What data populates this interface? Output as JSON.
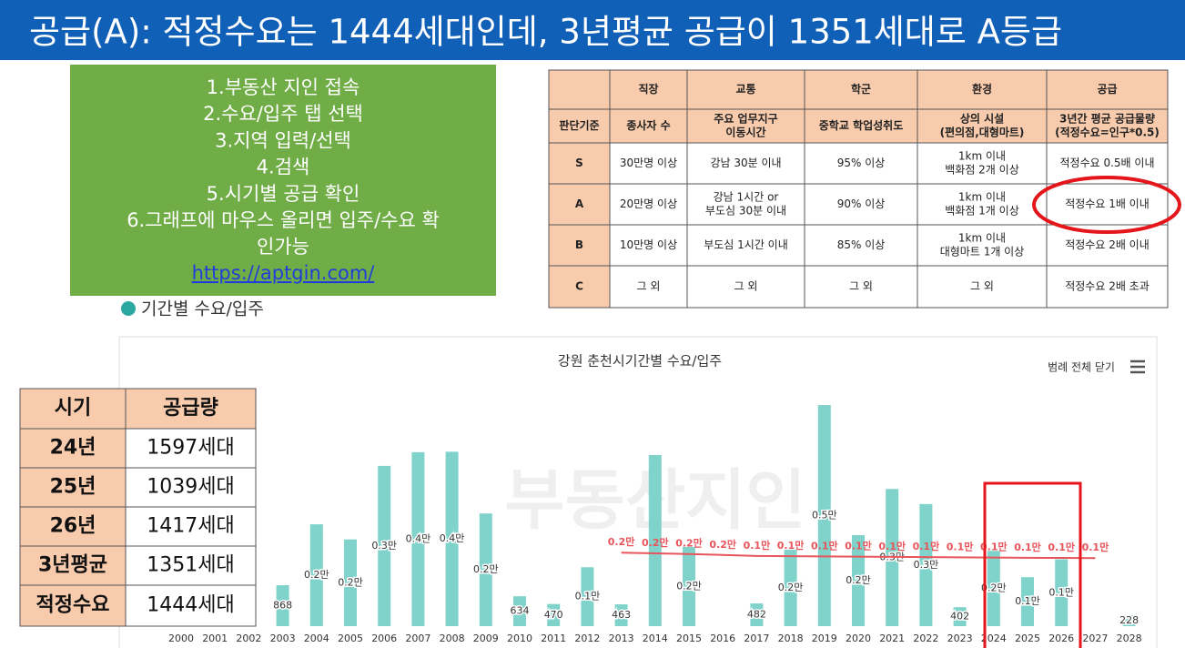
{
  "header": {
    "title": "공급(A): 적정수요는 1444세대인데, 3년평균 공급이 1351세대로 A등급"
  },
  "steps": {
    "lines": [
      "1.부동산 지인 접속",
      "2.수요/입주 탭 선택",
      "3.지역 입력/선택",
      "4.검색",
      "5.시기별 공급 확인",
      "6.그래프에 마우스 올리면 입주/수요 확",
      "인가능"
    ],
    "link": "https://aptgin.com/"
  },
  "section_label": "기간별 수요/입주",
  "criteria_table": {
    "header": [
      "직장",
      "교통",
      "학군",
      "환경",
      "공급"
    ],
    "rows": [
      {
        "grade": "판단기준",
        "cells": [
          [
            "종사자 수"
          ],
          [
            "주요 업무지구",
            "이동시간"
          ],
          [
            "중학교 학업성취도"
          ],
          [
            "상의 시설",
            "(편의점,대형마트)"
          ],
          [
            "3년간 평균 공급물량",
            "(적정수요=인구*0.5)"
          ]
        ]
      },
      {
        "grade": "S",
        "cells": [
          [
            "30만명 이상"
          ],
          [
            "강남 30분 이내"
          ],
          [
            "95% 이상"
          ],
          [
            "1km 이내",
            "백화점 2개 이상"
          ],
          [
            "적정수요 0.5배 이내"
          ]
        ]
      },
      {
        "grade": "A",
        "cells": [
          [
            "20만명 이상"
          ],
          [
            "강남 1시간 or",
            "부도심 30분 이내"
          ],
          [
            "90% 이상"
          ],
          [
            "1km 이내",
            "백화점 1개 이상"
          ],
          [
            "적정수요 1배 이내"
          ]
        ]
      },
      {
        "grade": "B",
        "cells": [
          [
            "10만명 이상"
          ],
          [
            "부도심 1시간 이내"
          ],
          [
            "85% 이상"
          ],
          [
            "1km 이내",
            "대형마트 1개 이상"
          ],
          [
            "적정수요 2배 이내"
          ]
        ]
      },
      {
        "grade": "C",
        "cells": [
          [
            "그 외"
          ],
          [
            "그 외"
          ],
          [
            "그 외"
          ],
          [
            "그 외"
          ],
          [
            "적정수요 2배 초과"
          ]
        ]
      }
    ]
  },
  "supply_table": {
    "header": [
      "시기",
      "공급량"
    ],
    "rows": [
      [
        "24년",
        "1597세대"
      ],
      [
        "25년",
        "1039세대"
      ],
      [
        "26년",
        "1417세대"
      ],
      [
        "3년평균",
        "1351세대"
      ],
      [
        "적정수요",
        "1444세대"
      ]
    ]
  },
  "chart_data": {
    "type": "bar",
    "title": "강원 춘천시기간별 수요/입주",
    "legend_button": "범례 전체 닫기",
    "watermark": "부동산지인",
    "categories": [
      "2000",
      "2001",
      "2002",
      "2003",
      "2004",
      "2005",
      "2006",
      "2007",
      "2008",
      "2009",
      "2010",
      "2011",
      "2012",
      "2013",
      "2014",
      "2015",
      "2016",
      "2017",
      "2018",
      "2019",
      "2020",
      "2021",
      "2022",
      "2023",
      "2024",
      "2025",
      "2026",
      "2027",
      "2028"
    ],
    "ylim": [
      0,
      5000
    ],
    "series": [
      {
        "type": "bar",
        "color": "#7fd3cb",
        "values": [
          null,
          null,
          null,
          868,
          2160,
          1840,
          3400,
          3690,
          3700,
          2390,
          634,
          470,
          1250,
          463,
          3630,
          1680,
          null,
          482,
          1620,
          4690,
          1930,
          2910,
          2590,
          402,
          1597,
          1039,
          1417,
          null,
          228
        ],
        "value_labels": [
          null,
          null,
          null,
          "868",
          "0.2만",
          "0.2만",
          "0.3만",
          "0.4만",
          "0.4만",
          "0.2만",
          "634",
          "470",
          "0.1만",
          "463",
          null,
          "0.2만",
          null,
          "482",
          "0.2만",
          "0.5만",
          "0.2만",
          "0.3만",
          "0.3만",
          "402",
          "0.2만",
          "0.1만",
          "0.1만",
          null,
          "228"
        ]
      },
      {
        "type": "line",
        "color": "#e8545a",
        "values": [
          null,
          null,
          null,
          null,
          null,
          null,
          null,
          null,
          null,
          null,
          null,
          null,
          null,
          1560,
          1545,
          1530,
          1510,
          1490,
          1485,
          1480,
          1475,
          1470,
          1465,
          1460,
          1455,
          1450,
          1447,
          1444,
          null
        ],
        "value_labels": [
          null,
          null,
          null,
          null,
          null,
          null,
          null,
          null,
          null,
          null,
          null,
          null,
          null,
          "0.2만",
          "0.2만",
          "0.2만",
          "0.2만",
          "0.1만",
          "0.1만",
          "0.1만",
          "0.1만",
          "0.1만",
          "0.1만",
          "0.1만",
          "0.1만",
          "0.1만",
          "0.1만",
          "0.1만",
          null
        ]
      }
    ]
  }
}
